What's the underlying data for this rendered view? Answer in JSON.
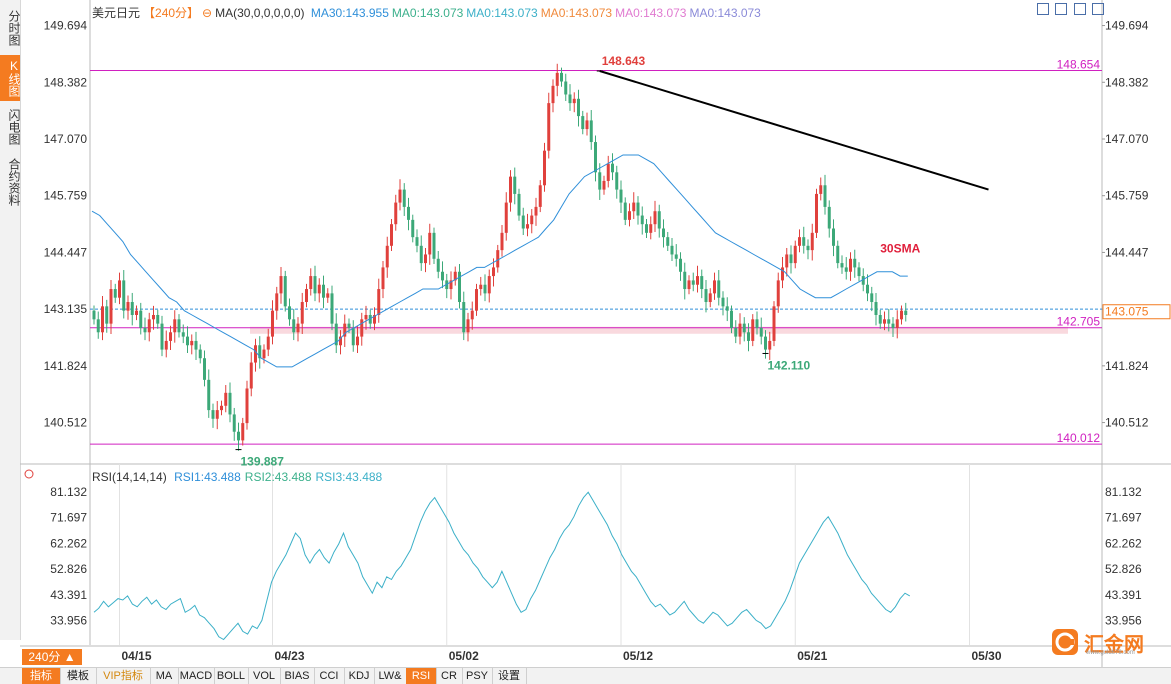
{
  "tabs_left": [
    {
      "label": "分时图",
      "active": false
    },
    {
      "label": "K线图",
      "active": true
    },
    {
      "label": "闪电图",
      "active": false
    },
    {
      "label": "合约资料",
      "active": false
    }
  ],
  "legend": {
    "symbol": "美元日元",
    "period_tag": "【240分】",
    "ma_params": "MA(30,0,0,0,0,0)",
    "items": [
      {
        "text": "MA30:143.955",
        "color": "#2f8fd9"
      },
      {
        "text": "MA0:143.073",
        "color": "#3cb08c"
      },
      {
        "text": "MA0:143.073",
        "color": "#3cb0c8"
      },
      {
        "text": "MA0:143.073",
        "color": "#f08a3c"
      },
      {
        "text": "MA0:143.073",
        "color": "#e07ad0"
      },
      {
        "text": "MA0:143.073",
        "color": "#8a8ad8"
      }
    ]
  },
  "rsi_legend": {
    "params": "RSI(14,14,14)",
    "items": [
      {
        "text": "RSI1:43.488",
        "color": "#2f8fd9"
      },
      {
        "text": "RSI2:43.488",
        "color": "#3cb08c"
      },
      {
        "text": "RSI3:43.488",
        "color": "#3cb0c8"
      }
    ]
  },
  "period_button": "240分 ▲",
  "bottom_tabs": [
    {
      "label": "指标",
      "active": true,
      "vip": false,
      "w": 38
    },
    {
      "label": "模板",
      "active": false,
      "vip": false,
      "w": 36
    },
    {
      "label": "VIP指标",
      "active": false,
      "vip": true,
      "w": 54
    },
    {
      "label": "MA",
      "active": false,
      "vip": false,
      "w": 28
    },
    {
      "label": "MACD",
      "active": false,
      "vip": false,
      "w": 36
    },
    {
      "label": "BOLL",
      "active": false,
      "vip": false,
      "w": 34
    },
    {
      "label": "VOL",
      "active": false,
      "vip": false,
      "w": 32
    },
    {
      "label": "BIAS",
      "active": false,
      "vip": false,
      "w": 34
    },
    {
      "label": "CCI",
      "active": false,
      "vip": false,
      "w": 30
    },
    {
      "label": "KDJ",
      "active": false,
      "vip": false,
      "w": 30
    },
    {
      "label": "LW&",
      "active": false,
      "vip": false,
      "w": 32
    },
    {
      "label": "RSI",
      "active": true,
      "vip": false,
      "w": 30
    },
    {
      "label": "CR",
      "active": false,
      "vip": false,
      "w": 26
    },
    {
      "label": "PSY",
      "active": false,
      "vip": false,
      "w": 30
    },
    {
      "label": "设置",
      "active": false,
      "vip": false,
      "w": 34
    }
  ],
  "logo_text": "汇金网",
  "logo_sub": "www.gold678.com",
  "colors": {
    "up": "#e0403c",
    "down": "#3ca878",
    "ma30": "#2f8fd9",
    "rsi": "#3cb0c8",
    "level": "#d020c0",
    "trend": "#000000",
    "grid": "#d8d8d8"
  },
  "chart_data": {
    "type": "candlestick",
    "price_axis_ticks": [
      "149.694",
      "148.382",
      "147.070",
      "145.759",
      "144.447",
      "143.135",
      "141.824",
      "140.512"
    ],
    "price_ylim": [
      139.6,
      150.1
    ],
    "date_ticks": [
      {
        "label": "04/15",
        "index": 6
      },
      {
        "label": "04/23",
        "index": 42
      },
      {
        "label": "05/02",
        "index": 83
      },
      {
        "label": "05/12",
        "index": 124
      },
      {
        "label": "05/21",
        "index": 165
      },
      {
        "label": "05/30",
        "index": 206
      }
    ],
    "closes": [
      142.9,
      142.6,
      143.2,
      142.8,
      143.6,
      143.4,
      143.8,
      143.1,
      143.3,
      143.0,
      143.1,
      142.7,
      142.6,
      142.9,
      143.0,
      142.8,
      142.2,
      142.4,
      142.6,
      142.9,
      142.6,
      142.5,
      142.3,
      142.4,
      142.2,
      142.0,
      141.5,
      140.8,
      140.6,
      140.8,
      140.9,
      141.2,
      140.7,
      140.3,
      140.1,
      140.5,
      141.3,
      141.9,
      142.3,
      142.0,
      142.2,
      142.5,
      143.1,
      143.5,
      143.9,
      143.2,
      142.9,
      142.6,
      142.8,
      143.3,
      143.6,
      143.9,
      143.5,
      143.7,
      143.4,
      143.5,
      142.8,
      142.3,
      142.5,
      142.8,
      142.7,
      142.3,
      142.5,
      142.9,
      143.0,
      142.8,
      143.0,
      143.6,
      144.1,
      144.6,
      145.1,
      145.6,
      145.9,
      145.5,
      145.2,
      144.8,
      144.6,
      144.2,
      144.4,
      144.9,
      144.3,
      144.0,
      143.8,
      143.6,
      143.8,
      144.0,
      143.3,
      142.6,
      142.9,
      143.1,
      143.6,
      143.7,
      143.5,
      143.9,
      144.1,
      144.5,
      144.9,
      145.6,
      146.2,
      145.8,
      145.3,
      145.0,
      145.1,
      145.3,
      145.5,
      146.0,
      146.8,
      147.9,
      148.3,
      148.6,
      148.4,
      148.1,
      147.9,
      148.0,
      147.6,
      147.3,
      147.5,
      147.0,
      146.3,
      145.9,
      146.1,
      146.5,
      146.3,
      145.9,
      145.6,
      145.2,
      145.4,
      145.6,
      145.3,
      145.1,
      144.9,
      145.1,
      145.4,
      145.0,
      144.8,
      144.6,
      144.4,
      144.3,
      144.0,
      143.6,
      143.8,
      143.7,
      143.9,
      143.6,
      143.3,
      143.5,
      143.8,
      143.4,
      143.2,
      143.1,
      142.7,
      142.5,
      142.8,
      142.6,
      142.4,
      142.9,
      142.7,
      142.5,
      142.2,
      142.4,
      143.2,
      143.8,
      144.1,
      144.4,
      144.2,
      144.6,
      144.8,
      144.6,
      144.5,
      144.9,
      145.8,
      146.0,
      145.5,
      145.0,
      144.6,
      144.2,
      144.1,
      144.0,
      144.3,
      144.1,
      143.9,
      143.7,
      143.5,
      143.3,
      143.0,
      142.8,
      142.9,
      142.8,
      142.7,
      142.9,
      143.1,
      143.0
    ],
    "ma30": [
      145.4,
      145.3,
      145.1,
      144.9,
      144.7,
      144.4,
      144.2,
      144.0,
      143.8,
      143.6,
      143.4,
      143.3,
      143.1,
      143.0,
      142.9,
      142.8,
      142.7,
      142.6,
      142.5,
      142.4,
      142.3,
      142.2,
      142.0,
      141.9,
      141.8,
      141.8,
      141.8,
      141.9,
      142.0,
      142.1,
      142.2,
      142.3,
      142.4,
      142.6,
      142.7,
      142.8,
      142.9,
      143.0,
      143.1,
      143.2,
      143.3,
      143.4,
      143.5,
      143.6,
      143.6,
      143.6,
      143.7,
      143.8,
      143.9,
      144.0,
      144.1,
      144.1,
      144.2,
      144.3,
      144.4,
      144.5,
      144.6,
      144.7,
      144.8,
      145.0,
      145.2,
      145.5,
      145.8,
      146.0,
      146.2,
      146.3,
      146.4,
      146.5,
      146.6,
      146.7,
      146.7,
      146.7,
      146.6,
      146.5,
      146.3,
      146.1,
      145.9,
      145.7,
      145.5,
      145.3,
      145.1,
      144.9,
      144.8,
      144.7,
      144.6,
      144.5,
      144.4,
      144.3,
      144.2,
      144.1,
      144.0,
      143.8,
      143.6,
      143.5,
      143.4,
      143.4,
      143.4,
      143.5,
      143.6,
      143.7,
      143.8,
      143.9,
      144.0,
      144.0,
      144.0,
      143.9,
      143.9
    ],
    "rsi": [
      37.0,
      38.5,
      41.0,
      39.0,
      40.5,
      42.0,
      41.5,
      43.0,
      40.0,
      39.0,
      41.0,
      42.5,
      40.0,
      41.5,
      39.0,
      38.0,
      40.0,
      41.0,
      42.0,
      37.0,
      38.0,
      39.5,
      36.0,
      35.0,
      33.0,
      31.0,
      28.0,
      27.0,
      29.0,
      31.0,
      33.0,
      30.0,
      29.0,
      32.0,
      31.0,
      34.0,
      41.0,
      48.0,
      52.0,
      55.0,
      58.0,
      62.0,
      66.0,
      64.0,
      58.0,
      55.0,
      58.0,
      60.0,
      57.0,
      55.0,
      59.0,
      62.0,
      66.0,
      61.0,
      58.0,
      55.0,
      50.0,
      47.0,
      44.0,
      48.0,
      46.0,
      50.0,
      49.0,
      52.0,
      54.0,
      57.0,
      60.0,
      65.0,
      70.0,
      74.0,
      77.0,
      79.0,
      76.0,
      73.0,
      70.0,
      66.0,
      63.0,
      60.0,
      58.0,
      55.0,
      53.0,
      50.0,
      48.0,
      46.0,
      48.0,
      52.0,
      48.0,
      44.0,
      40.0,
      37.0,
      38.0,
      42.0,
      45.0,
      49.0,
      53.0,
      57.0,
      60.0,
      64.0,
      67.0,
      69.0,
      72.0,
      76.0,
      79.0,
      81.0,
      78.0,
      75.0,
      72.0,
      69.0,
      65.0,
      62.0,
      58.0,
      55.0,
      52.0,
      50.0,
      47.0,
      44.0,
      41.0,
      39.0,
      40.0,
      38.0,
      36.0,
      37.0,
      39.0,
      41.0,
      38.0,
      36.0,
      34.0,
      33.0,
      35.0,
      37.0,
      36.0,
      34.0,
      32.0,
      33.0,
      35.0,
      37.0,
      38.0,
      36.0,
      34.0,
      33.0,
      31.0,
      32.0,
      35.0,
      38.0,
      41.0,
      45.0,
      50.0,
      55.0,
      58.0,
      61.0,
      64.0,
      67.0,
      70.0,
      72.0,
      69.0,
      66.0,
      62.0,
      58.0,
      55.0,
      52.0,
      49.0,
      47.0,
      44.0,
      42.0,
      40.0,
      38.0,
      37.0,
      39.0,
      42.0,
      44.0,
      43.0
    ],
    "levels": [
      {
        "value": 148.654,
        "label": "148.654"
      },
      {
        "value": 140.012,
        "label": "140.012"
      },
      {
        "value": 142.705,
        "label": "142.705"
      }
    ],
    "current_price": "143.075",
    "current_price_value": 143.075,
    "dashed_ref": 143.135,
    "annotations": [
      {
        "text": "148.643",
        "price": 148.643,
        "index": 119,
        "color": "#e0403c"
      },
      {
        "text": "139.887",
        "price": 139.887,
        "index": 34,
        "color": "#3ca878"
      },
      {
        "text": "142.110",
        "price": 142.11,
        "index": 158,
        "color": "#3ca878"
      },
      {
        "text": "30SMA",
        "price": 144.447,
        "index": 185,
        "color": "#e0203c"
      }
    ],
    "trendline": [
      {
        "index": 119,
        "price": 148.643
      },
      {
        "index": 194,
        "price": 145.3
      }
    ],
    "rsi_axis_ticks": [
      "81.132",
      "71.697",
      "62.262",
      "52.826",
      "43.391",
      "33.956"
    ],
    "rsi_ylim": [
      25,
      84
    ]
  }
}
